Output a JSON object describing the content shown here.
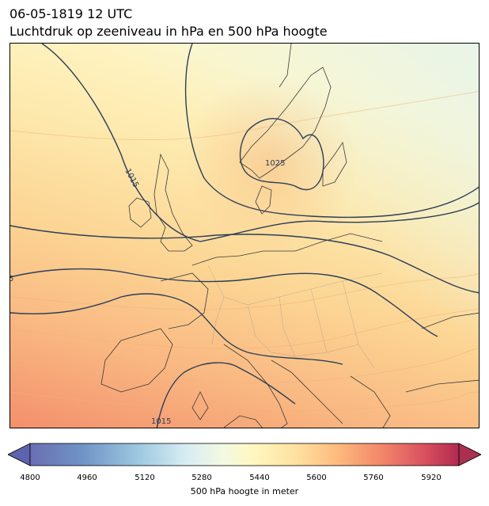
{
  "title": {
    "line1": "06-05-1819 12 UTC",
    "line2": "Luchtdruk op zeeniveau in hPa en 500 hPa hoogte"
  },
  "map": {
    "region": "Europe",
    "isobar_labels": [
      "1015",
      "1025",
      "1015",
      "5"
    ],
    "isobar_color": "#2c3e57",
    "coastline_color": "#3a3a3a"
  },
  "colorbar": {
    "label": "500 hPa hoogte in meter",
    "ticks": [
      "4800",
      "4960",
      "5120",
      "5280",
      "5440",
      "5600",
      "5760",
      "5920"
    ],
    "min": 4800,
    "max": 6000,
    "colormap": [
      "#5e4fa2",
      "#3288bd",
      "#66c2a5",
      "#abdda4",
      "#e6f598",
      "#ffffbf",
      "#fee08b",
      "#fdae61",
      "#f46d43",
      "#d53e4f",
      "#9e0142"
    ]
  },
  "field_colors": {
    "low": "#f49a72",
    "mid": "#fcd79a",
    "high": "#fff8c8",
    "corner": "#eef7ec"
  }
}
